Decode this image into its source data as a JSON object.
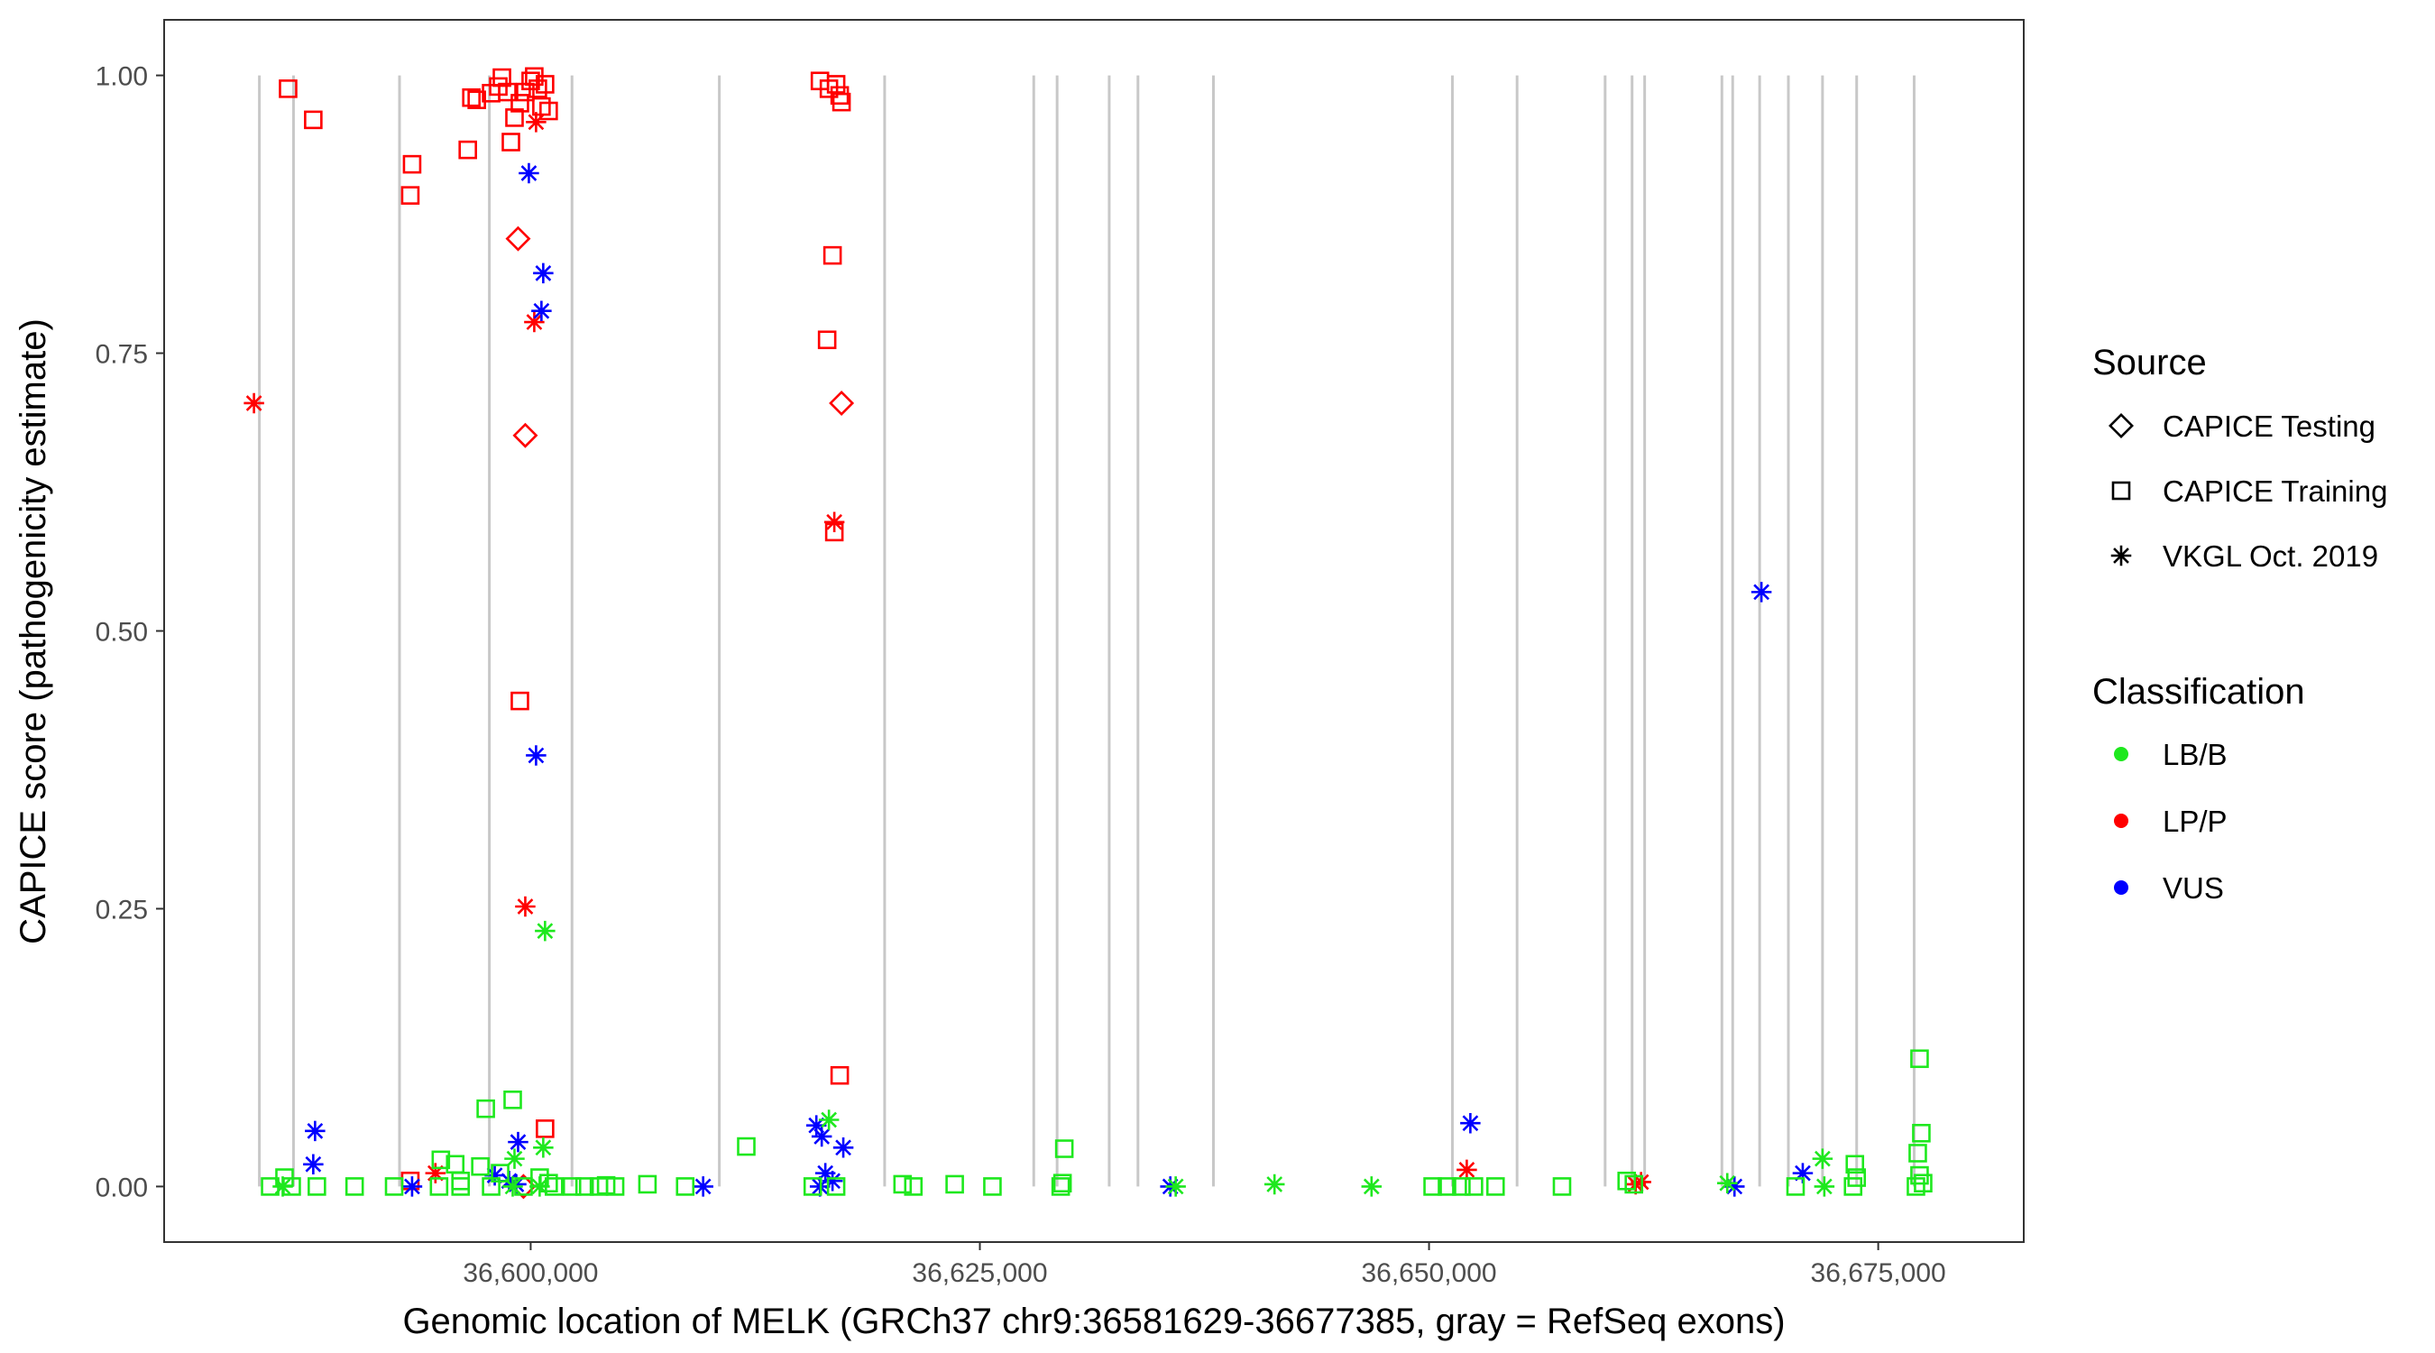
{
  "chart_data": {
    "type": "scatter",
    "xlabel": "Genomic location of MELK (GRCh37 chr9:36581629-36677385, gray = RefSeq exons)",
    "ylabel": "CAPICE score (pathogenicity estimate)",
    "xlim": [
      36579600,
      36683100
    ],
    "ylim": [
      -0.05,
      1.05
    ],
    "x_ticks": [
      36600000,
      36625000,
      36650000,
      36675000
    ],
    "x_tick_labels": [
      "36,600,000",
      "36,625,000",
      "36,650,000",
      "36,675,000"
    ],
    "y_ticks": [
      0,
      0.25,
      0.5,
      0.75,
      1.0
    ],
    "y_tick_labels": [
      "0.00",
      "0.25",
      "0.50",
      "0.75",
      "1.00"
    ],
    "grid": false,
    "legend_position": "right",
    "exons": [
      36584900,
      36586800,
      36592700,
      36597700,
      36602300,
      36610500,
      36619700,
      36628000,
      36629300,
      36632200,
      36633800,
      36638000,
      36651300,
      36654900,
      36659800,
      36661300,
      36662000,
      36666300,
      36666900,
      36668400,
      36670000,
      36671900,
      36673800,
      36677000
    ],
    "legends": {
      "source": {
        "title": "Source",
        "entries": [
          {
            "label": "CAPICE Testing",
            "shape": "diamond"
          },
          {
            "label": "CAPICE Training",
            "shape": "square"
          },
          {
            "label": "VKGL Oct. 2019",
            "shape": "asterisk"
          }
        ]
      },
      "classification": {
        "title": "Classification",
        "entries": [
          {
            "label": "LB/B",
            "color": "#1ee81e"
          },
          {
            "label": "LP/P",
            "color": "#ff0000"
          },
          {
            "label": "VUS",
            "color": "#0000ff"
          }
        ]
      }
    },
    "colors": {
      "LB/B": "#1ee81e",
      "LP/P": "#ff0000",
      "VUS": "#0000ff"
    },
    "series": [
      {
        "source": "CAPICE Training",
        "classification": "LP/P",
        "points": [
          [
            36586500,
            0.988
          ],
          [
            36587900,
            0.96
          ],
          [
            36593400,
            0.92
          ],
          [
            36593300,
            0.892
          ],
          [
            36596500,
            0.933
          ],
          [
            36596700,
            0.98
          ],
          [
            36597000,
            0.978
          ],
          [
            36597800,
            0.984
          ],
          [
            36598200,
            0.99
          ],
          [
            36598400,
            0.998
          ],
          [
            36598700,
            0.985
          ],
          [
            36598900,
            0.94
          ],
          [
            36599100,
            0.962
          ],
          [
            36599400,
            0.975
          ],
          [
            36599700,
            0.985
          ],
          [
            36600000,
            0.995
          ],
          [
            36600200,
            0.999
          ],
          [
            36600400,
            0.988
          ],
          [
            36600600,
            0.972
          ],
          [
            36600800,
            0.992
          ],
          [
            36601000,
            0.968
          ],
          [
            36599400,
            0.437
          ],
          [
            36600800,
            0.052
          ],
          [
            36616100,
            0.995
          ],
          [
            36616600,
            0.988
          ],
          [
            36617000,
            0.992
          ],
          [
            36617200,
            0.982
          ],
          [
            36617300,
            0.976
          ],
          [
            36616800,
            0.838
          ],
          [
            36616500,
            0.762
          ],
          [
            36616900,
            0.589
          ],
          [
            36617200,
            0.1
          ],
          [
            36593300,
            0.005
          ]
        ]
      },
      {
        "source": "CAPICE Testing",
        "classification": "LP/P",
        "points": [
          [
            36599300,
            0.853
          ],
          [
            36599700,
            0.676
          ],
          [
            36617300,
            0.705
          ],
          [
            36599600,
            0.0
          ]
        ]
      },
      {
        "source": "VKGL Oct. 2019",
        "classification": "LP/P",
        "points": [
          [
            36584600,
            0.705
          ],
          [
            36600200,
            0.778
          ],
          [
            36599700,
            0.252
          ],
          [
            36600300,
            0.958
          ],
          [
            36616900,
            0.598
          ],
          [
            36594700,
            0.012
          ],
          [
            36652100,
            0.015
          ],
          [
            36661800,
            0.004
          ],
          [
            36661500,
            0.002
          ]
        ]
      },
      {
        "source": "VKGL Oct. 2019",
        "classification": "VUS",
        "points": [
          [
            36599900,
            0.912
          ],
          [
            36600700,
            0.822
          ],
          [
            36600600,
            0.788
          ],
          [
            36600300,
            0.388
          ],
          [
            36599300,
            0.04
          ],
          [
            36588000,
            0.05
          ],
          [
            36587900,
            0.02
          ],
          [
            36593400,
            0.0
          ],
          [
            36598000,
            0.01
          ],
          [
            36598800,
            0.005
          ],
          [
            36599200,
            0.002
          ],
          [
            36609600,
            0.0
          ],
          [
            36615900,
            0.055
          ],
          [
            36616200,
            0.045
          ],
          [
            36616400,
            0.012
          ],
          [
            36616800,
            0.005
          ],
          [
            36616100,
            0.0
          ],
          [
            36617400,
            0.035
          ],
          [
            36635600,
            0.0
          ],
          [
            36652300,
            0.057
          ],
          [
            36667000,
            0.0
          ],
          [
            36670800,
            0.012
          ],
          [
            36668500,
            0.535
          ]
        ]
      },
      {
        "source": "VKGL Oct. 2019",
        "classification": "LB/B",
        "points": [
          [
            36600800,
            0.23
          ],
          [
            36600700,
            0.035
          ],
          [
            36599100,
            0.025
          ],
          [
            36616600,
            0.06
          ],
          [
            36586200,
            0.0
          ],
          [
            36641400,
            0.002
          ],
          [
            36635900,
            0.0
          ],
          [
            36646800,
            0.0
          ],
          [
            36666600,
            0.003
          ],
          [
            36671900,
            0.025
          ],
          [
            36672000,
            0.0
          ],
          [
            36599000,
            0.0
          ],
          [
            36600500,
            0.0
          ]
        ]
      },
      {
        "source": "CAPICE Training",
        "classification": "LB/B",
        "points": [
          [
            36599000,
            0.078
          ],
          [
            36597500,
            0.07
          ],
          [
            36612000,
            0.036
          ],
          [
            36595000,
            0.024
          ],
          [
            36595800,
            0.02
          ],
          [
            36597200,
            0.018
          ],
          [
            36598300,
            0.012
          ],
          [
            36600500,
            0.008
          ],
          [
            36596100,
            0.005
          ],
          [
            36601000,
            0.003
          ],
          [
            36586300,
            0.008
          ],
          [
            36585500,
            0.0
          ],
          [
            36586700,
            0.0
          ],
          [
            36588100,
            0.0
          ],
          [
            36590200,
            0.0
          ],
          [
            36592400,
            0.0
          ],
          [
            36594900,
            0.0
          ],
          [
            36596100,
            0.0
          ],
          [
            36597800,
            0.0
          ],
          [
            36599600,
            0.0
          ],
          [
            36601300,
            0.0
          ],
          [
            36602300,
            0.0
          ],
          [
            36603000,
            0.0
          ],
          [
            36603800,
            0.0
          ],
          [
            36604200,
            0.001
          ],
          [
            36604700,
            0.0
          ],
          [
            36606500,
            0.002
          ],
          [
            36608600,
            0.0
          ],
          [
            36615700,
            0.0
          ],
          [
            36617000,
            0.0
          ],
          [
            36620700,
            0.002
          ],
          [
            36621300,
            0.0
          ],
          [
            36623600,
            0.002
          ],
          [
            36625700,
            0.0
          ],
          [
            36629600,
            0.003
          ],
          [
            36629700,
            0.034
          ],
          [
            36629500,
            0.0
          ],
          [
            36650200,
            0.0
          ],
          [
            36651000,
            0.0
          ],
          [
            36651800,
            0.0
          ],
          [
            36652500,
            0.0
          ],
          [
            36653700,
            0.0
          ],
          [
            36657400,
            0.0
          ],
          [
            36661000,
            0.005
          ],
          [
            36661400,
            0.002
          ],
          [
            36670400,
            0.0
          ],
          [
            36673700,
            0.02
          ],
          [
            36673800,
            0.008
          ],
          [
            36673600,
            0.0
          ],
          [
            36677300,
            0.115
          ],
          [
            36677400,
            0.048
          ],
          [
            36677200,
            0.03
          ],
          [
            36677300,
            0.01
          ],
          [
            36677500,
            0.003
          ],
          [
            36677100,
            0.0
          ]
        ]
      }
    ]
  }
}
